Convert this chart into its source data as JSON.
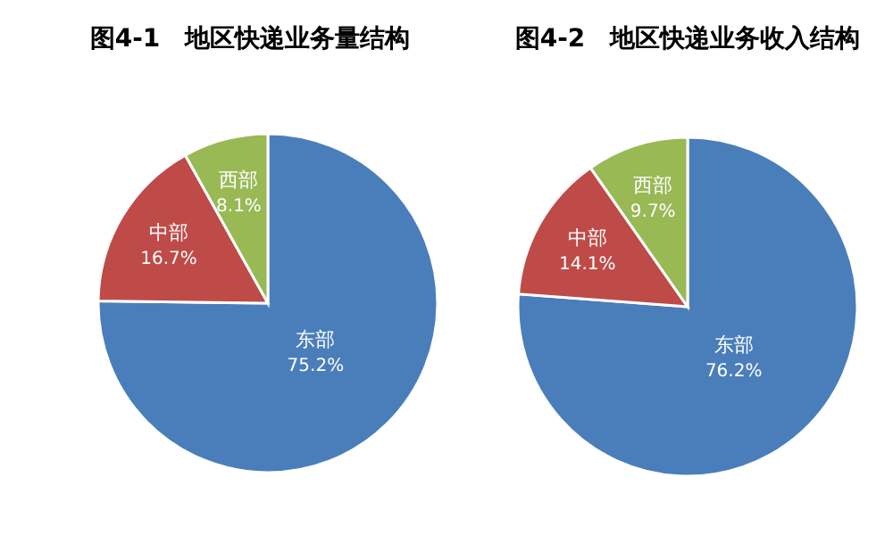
{
  "chart_data": [
    {
      "type": "pie",
      "title": "图4-1　地区快递业务量结构",
      "categories": [
        "东部",
        "中部",
        "西部"
      ],
      "values": [
        75.2,
        16.7,
        8.1
      ],
      "colors": [
        "#4a7ebb",
        "#be4b48",
        "#98b954"
      ],
      "value_labels": [
        "75.2%",
        "16.7%",
        "8.1%"
      ]
    },
    {
      "type": "pie",
      "title": "图4-2　地区快递业务收入结构",
      "categories": [
        "东部",
        "中部",
        "西部"
      ],
      "values": [
        76.2,
        14.1,
        9.7
      ],
      "colors": [
        "#4a7ebb",
        "#be4b48",
        "#98b954"
      ],
      "value_labels": [
        "76.2%",
        "14.1%",
        "9.7%"
      ]
    }
  ]
}
